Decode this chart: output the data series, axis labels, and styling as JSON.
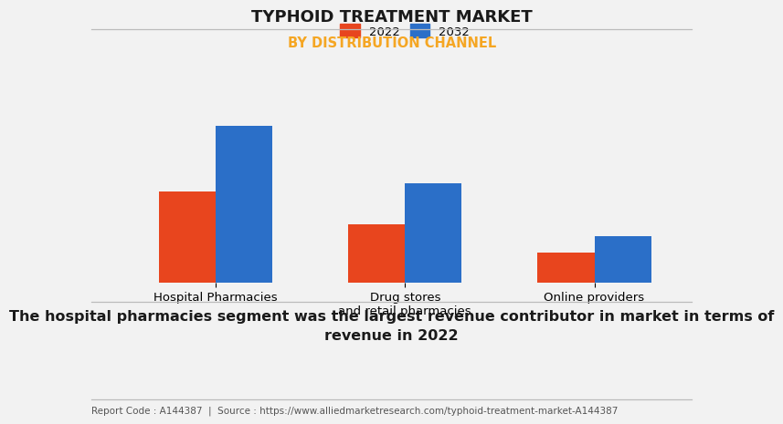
{
  "title": "TYPHOID TREATMENT MARKET",
  "subtitle": "BY DISTRIBUTION CHANNEL",
  "subtitle_color": "#F5A623",
  "categories": [
    "Hospital Pharmacies",
    "Drug stores\nand retail pharmacies",
    "Online providers"
  ],
  "series": [
    {
      "label": "2022",
      "values": [
        5.5,
        3.5,
        1.8
      ],
      "color": "#E8451E"
    },
    {
      "label": "2032",
      "values": [
        9.5,
        6.0,
        2.8
      ],
      "color": "#2B6FC8"
    }
  ],
  "ylim": [
    0,
    11
  ],
  "bar_width": 0.3,
  "background_color": "#f2f2f2",
  "grid_color": "#cccccc",
  "title_fontsize": 13,
  "subtitle_fontsize": 10.5,
  "tick_label_fontsize": 9.5,
  "legend_fontsize": 9.5,
  "footer_text": "Report Code : A144387  |  Source : https://www.alliedmarketresearch.com/typhoid-treatment-market-A144387",
  "caption_text": "The hospital pharmacies segment was the largest revenue contributor in market in terms of\nrevenue in 2022",
  "caption_fontsize": 11.5,
  "footer_fontsize": 7.5
}
